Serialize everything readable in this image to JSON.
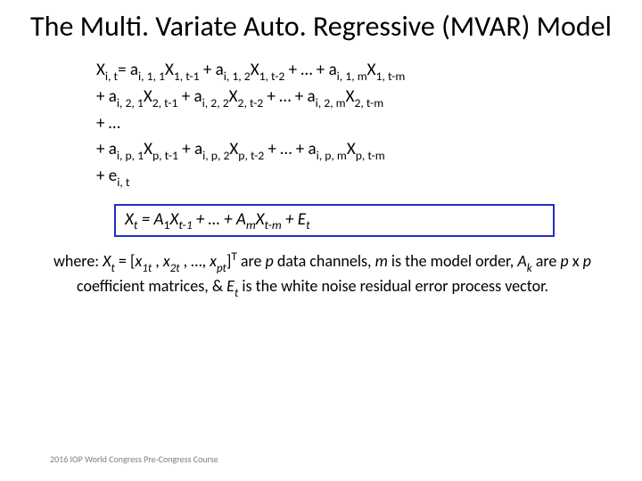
{
  "title": "The Multi. Variate Auto. Regressive (MVAR) Model",
  "equations": {
    "line1_pre": "X",
    "line1_sub1": "i, t",
    "line1_a1": "= a",
    "line1_a1sub": "i, 1, 1",
    "line1_x1": "X",
    "line1_x1sub": "1, t-1",
    "line1_plus1": " + a",
    "line1_a2sub": "i, 1, 2",
    "line1_x2": "X",
    "line1_x2sub": "1, t-2",
    "line1_mid": " + … + a",
    "line1_amsub": "i, 1, m",
    "line1_xm": "X",
    "line1_xmsub": "1, t-m",
    "line2_pre": " + a",
    "line2_a1sub": "i, 2, 1",
    "line2_x1": "X",
    "line2_x1sub": "2, t-1",
    "line2_plus1": " + a",
    "line2_a2sub": "i, 2, 2",
    "line2_x2": "X",
    "line2_x2sub": "2, t-2",
    "line2_mid": " + … + a",
    "line2_amsub": "i, 2, m",
    "line2_xm": "X",
    "line2_xmsub": "2, t-m",
    "line3": " + …",
    "line4_pre": " + a",
    "line4_a1sub": "i, p, 1",
    "line4_x1": "X",
    "line4_x1sub": "p, t-1",
    "line4_plus1": " + a",
    "line4_a2sub": "i, p, 2",
    "line4_x2": "X",
    "line4_x2sub": "p, t-2",
    "line4_mid": " + … + a",
    "line4_amsub": "i, p, m",
    "line4_xm": "X",
    "line4_xmsub": "p, t-m",
    "line5_pre": " + e",
    "line5_sub": "i, t"
  },
  "boxed": {
    "X": "X",
    "tsub": "t",
    "eq": " = A",
    "a1sub": "1",
    "x1": "X",
    "x1sub": "t-1",
    "mid": " + … + A",
    "amsub": "m",
    "xm": "X",
    "xmsub": "t-m",
    "plus": " + E",
    "etsub": "t"
  },
  "desc": {
    "where": "where: ",
    "Xt": "X",
    "Xtsub": "t",
    "eq": " = [",
    "x1": "x",
    "x1sub": "1t",
    "c1": " , ",
    "x2": "x",
    "x2sub": "2t",
    "c2": " , …, ",
    "xp": "x",
    "xpsub": "pt",
    "close": "]",
    "Tsup": "T",
    "are": " are ",
    "p": "p",
    "datachannels": " data channels, ",
    "m": "m",
    "isorder": " is the model order, ",
    "Ak": "A",
    "Aksub": "k",
    "arepxp": " are ",
    "p2": "p",
    "x": " x ",
    "p3": "p",
    "coeff": " coefficient matrices, & ",
    "Et": "E",
    "Etsub": "t",
    "tail": " is the white noise residual error process vector."
  },
  "footer": "2016 IOP World Congress Pre-Congress Course",
  "colors": {
    "box_border": "#2030c0",
    "text": "#000000",
    "footer": "#7f7f7f",
    "bg": "#ffffff"
  }
}
